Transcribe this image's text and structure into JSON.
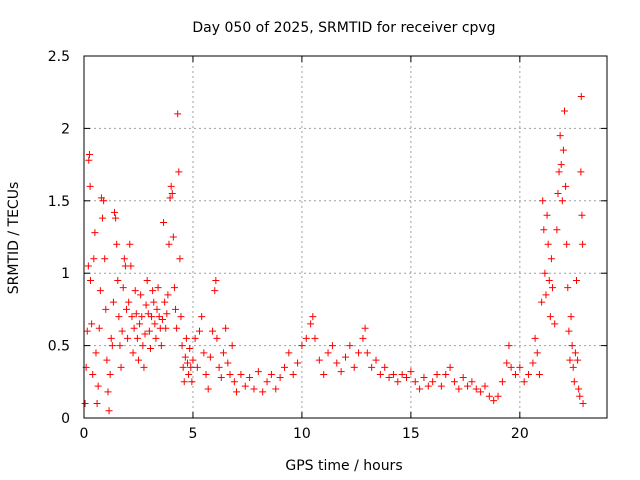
{
  "chart_data": {
    "type": "scatter",
    "title": "Day 050 of 2025, SRMTID for receiver cpvg",
    "xlabel": "GPS time / hours",
    "ylabel": "SRMTID / TECUs",
    "xlim": [
      0,
      24
    ],
    "ylim": [
      0,
      2.5
    ],
    "x_ticks": [
      0,
      5,
      10,
      15,
      20
    ],
    "x_tick_labels": [
      "0",
      "5",
      "10",
      "15",
      "20"
    ],
    "y_ticks": [
      0,
      0.5,
      1,
      1.5,
      2,
      2.5
    ],
    "y_tick_labels": [
      "0",
      "0.5",
      "1",
      "1.5",
      "2",
      "2.5"
    ],
    "grid": true,
    "marker": "plus",
    "color": "#ff0000",
    "series": [
      {
        "name": "SRMTID",
        "points": [
          [
            0.05,
            0.1
          ],
          [
            0.1,
            0.35
          ],
          [
            0.15,
            0.6
          ],
          [
            0.2,
            1.05
          ],
          [
            0.22,
            1.78
          ],
          [
            0.25,
            1.82
          ],
          [
            0.28,
            1.6
          ],
          [
            0.3,
            0.95
          ],
          [
            0.35,
            0.65
          ],
          [
            0.4,
            0.3
          ],
          [
            0.45,
            1.1
          ],
          [
            0.5,
            1.28
          ],
          [
            0.55,
            0.45
          ],
          [
            0.6,
            0.1
          ],
          [
            0.65,
            0.22
          ],
          [
            0.7,
            0.62
          ],
          [
            0.75,
            0.88
          ],
          [
            0.8,
            1.52
          ],
          [
            0.85,
            1.38
          ],
          [
            0.9,
            1.5
          ],
          [
            0.95,
            1.1
          ],
          [
            1.0,
            0.75
          ],
          [
            1.05,
            0.4
          ],
          [
            1.1,
            0.18
          ],
          [
            1.15,
            0.05
          ],
          [
            1.2,
            0.3
          ],
          [
            1.25,
            0.55
          ],
          [
            1.3,
            0.5
          ],
          [
            1.35,
            0.8
          ],
          [
            1.4,
            1.42
          ],
          [
            1.45,
            1.38
          ],
          [
            1.5,
            1.2
          ],
          [
            1.55,
            0.95
          ],
          [
            1.6,
            0.7
          ],
          [
            1.65,
            0.5
          ],
          [
            1.7,
            0.35
          ],
          [
            1.75,
            0.6
          ],
          [
            1.8,
            0.9
          ],
          [
            1.85,
            1.1
          ],
          [
            1.9,
            1.05
          ],
          [
            1.95,
            0.75
          ],
          [
            2.0,
            0.55
          ],
          [
            2.05,
            0.8
          ],
          [
            2.1,
            1.2
          ],
          [
            2.15,
            1.05
          ],
          [
            2.2,
            0.7
          ],
          [
            2.25,
            0.45
          ],
          [
            2.3,
            0.62
          ],
          [
            2.35,
            0.88
          ],
          [
            2.4,
            0.72
          ],
          [
            2.45,
            0.55
          ],
          [
            2.5,
            0.4
          ],
          [
            2.55,
            0.65
          ],
          [
            2.6,
            0.85
          ],
          [
            2.65,
            0.7
          ],
          [
            2.7,
            0.5
          ],
          [
            2.75,
            0.35
          ],
          [
            2.8,
            0.58
          ],
          [
            2.85,
            0.78
          ],
          [
            2.9,
            0.95
          ],
          [
            2.95,
            0.72
          ],
          [
            3.0,
            0.6
          ],
          [
            3.05,
            0.48
          ],
          [
            3.1,
            0.7
          ],
          [
            3.15,
            0.88
          ],
          [
            3.2,
            0.8
          ],
          [
            3.25,
            0.65
          ],
          [
            3.3,
            0.55
          ],
          [
            3.35,
            0.75
          ],
          [
            3.4,
            0.9
          ],
          [
            3.45,
            0.7
          ],
          [
            3.5,
            0.62
          ],
          [
            3.55,
            0.5
          ],
          [
            3.6,
            0.68
          ],
          [
            3.65,
            1.35
          ],
          [
            3.7,
            0.8
          ],
          [
            3.75,
            0.62
          ],
          [
            3.8,
            0.72
          ],
          [
            3.85,
            0.85
          ],
          [
            3.9,
            1.2
          ],
          [
            3.95,
            1.52
          ],
          [
            4.0,
            1.6
          ],
          [
            4.05,
            1.55
          ],
          [
            4.1,
            1.25
          ],
          [
            4.15,
            0.9
          ],
          [
            4.2,
            0.75
          ],
          [
            4.25,
            0.62
          ],
          [
            4.3,
            2.1
          ],
          [
            4.35,
            1.7
          ],
          [
            4.4,
            1.1
          ],
          [
            4.45,
            0.7
          ],
          [
            4.5,
            0.5
          ],
          [
            4.55,
            0.35
          ],
          [
            4.6,
            0.25
          ],
          [
            4.65,
            0.42
          ],
          [
            4.7,
            0.55
          ],
          [
            4.75,
            0.38
          ],
          [
            4.8,
            0.3
          ],
          [
            4.85,
            0.48
          ],
          [
            4.9,
            0.35
          ],
          [
            4.95,
            0.25
          ],
          [
            5.0,
            0.4
          ],
          [
            5.1,
            0.55
          ],
          [
            5.2,
            0.35
          ],
          [
            5.3,
            0.6
          ],
          [
            5.4,
            0.7
          ],
          [
            5.5,
            0.45
          ],
          [
            5.6,
            0.3
          ],
          [
            5.7,
            0.2
          ],
          [
            5.8,
            0.42
          ],
          [
            5.9,
            0.6
          ],
          [
            6.0,
            0.88
          ],
          [
            6.05,
            0.95
          ],
          [
            6.1,
            0.55
          ],
          [
            6.2,
            0.35
          ],
          [
            6.3,
            0.28
          ],
          [
            6.4,
            0.45
          ],
          [
            6.5,
            0.62
          ],
          [
            6.6,
            0.38
          ],
          [
            6.7,
            0.3
          ],
          [
            6.8,
            0.5
          ],
          [
            6.9,
            0.25
          ],
          [
            7.0,
            0.18
          ],
          [
            7.2,
            0.3
          ],
          [
            7.4,
            0.22
          ],
          [
            7.6,
            0.28
          ],
          [
            7.8,
            0.2
          ],
          [
            8.0,
            0.32
          ],
          [
            8.2,
            0.18
          ],
          [
            8.4,
            0.25
          ],
          [
            8.6,
            0.3
          ],
          [
            8.8,
            0.2
          ],
          [
            9.0,
            0.28
          ],
          [
            9.2,
            0.35
          ],
          [
            9.4,
            0.45
          ],
          [
            9.6,
            0.3
          ],
          [
            9.8,
            0.38
          ],
          [
            10.0,
            0.5
          ],
          [
            10.2,
            0.55
          ],
          [
            10.4,
            0.65
          ],
          [
            10.5,
            0.7
          ],
          [
            10.6,
            0.55
          ],
          [
            10.8,
            0.4
          ],
          [
            11.0,
            0.3
          ],
          [
            11.2,
            0.45
          ],
          [
            11.4,
            0.5
          ],
          [
            11.6,
            0.38
          ],
          [
            11.8,
            0.32
          ],
          [
            12.0,
            0.42
          ],
          [
            12.2,
            0.5
          ],
          [
            12.4,
            0.35
          ],
          [
            12.6,
            0.45
          ],
          [
            12.8,
            0.55
          ],
          [
            12.9,
            0.62
          ],
          [
            13.0,
            0.45
          ],
          [
            13.2,
            0.35
          ],
          [
            13.4,
            0.4
          ],
          [
            13.6,
            0.3
          ],
          [
            13.8,
            0.35
          ],
          [
            14.0,
            0.28
          ],
          [
            14.2,
            0.3
          ],
          [
            14.4,
            0.25
          ],
          [
            14.6,
            0.3
          ],
          [
            14.8,
            0.28
          ],
          [
            15.0,
            0.32
          ],
          [
            15.2,
            0.25
          ],
          [
            15.4,
            0.2
          ],
          [
            15.6,
            0.28
          ],
          [
            15.8,
            0.22
          ],
          [
            16.0,
            0.25
          ],
          [
            16.2,
            0.3
          ],
          [
            16.4,
            0.22
          ],
          [
            16.6,
            0.3
          ],
          [
            16.8,
            0.35
          ],
          [
            17.0,
            0.25
          ],
          [
            17.2,
            0.2
          ],
          [
            17.4,
            0.28
          ],
          [
            17.6,
            0.22
          ],
          [
            17.8,
            0.25
          ],
          [
            18.0,
            0.2
          ],
          [
            18.2,
            0.18
          ],
          [
            18.4,
            0.22
          ],
          [
            18.6,
            0.15
          ],
          [
            18.8,
            0.12
          ],
          [
            19.0,
            0.15
          ],
          [
            19.2,
            0.25
          ],
          [
            19.4,
            0.38
          ],
          [
            19.5,
            0.5
          ],
          [
            19.6,
            0.35
          ],
          [
            19.8,
            0.3
          ],
          [
            20.0,
            0.35
          ],
          [
            20.2,
            0.25
          ],
          [
            20.4,
            0.3
          ],
          [
            20.6,
            0.38
          ],
          [
            20.7,
            0.55
          ],
          [
            20.8,
            0.45
          ],
          [
            20.9,
            0.3
          ],
          [
            21.0,
            0.8
          ],
          [
            21.05,
            1.5
          ],
          [
            21.1,
            1.3
          ],
          [
            21.15,
            1.0
          ],
          [
            21.2,
            0.85
          ],
          [
            21.25,
            1.4
          ],
          [
            21.3,
            1.2
          ],
          [
            21.35,
            0.95
          ],
          [
            21.4,
            0.7
          ],
          [
            21.45,
            1.1
          ],
          [
            21.5,
            0.9
          ],
          [
            21.6,
            0.65
          ],
          [
            21.7,
            1.3
          ],
          [
            21.75,
            1.55
          ],
          [
            21.8,
            1.7
          ],
          [
            21.85,
            1.95
          ],
          [
            21.9,
            1.75
          ],
          [
            21.95,
            1.5
          ],
          [
            22.0,
            1.85
          ],
          [
            22.05,
            2.12
          ],
          [
            22.1,
            1.6
          ],
          [
            22.15,
            1.2
          ],
          [
            22.2,
            0.9
          ],
          [
            22.25,
            0.6
          ],
          [
            22.3,
            0.4
          ],
          [
            22.35,
            0.7
          ],
          [
            22.4,
            0.5
          ],
          [
            22.45,
            0.35
          ],
          [
            22.5,
            0.25
          ],
          [
            22.55,
            0.45
          ],
          [
            22.6,
            0.95
          ],
          [
            22.65,
            0.4
          ],
          [
            22.7,
            0.2
          ],
          [
            22.75,
            0.15
          ],
          [
            22.8,
            1.7
          ],
          [
            22.82,
            2.22
          ],
          [
            22.85,
            1.4
          ],
          [
            22.88,
            1.2
          ],
          [
            22.9,
            0.1
          ]
        ]
      }
    ]
  }
}
